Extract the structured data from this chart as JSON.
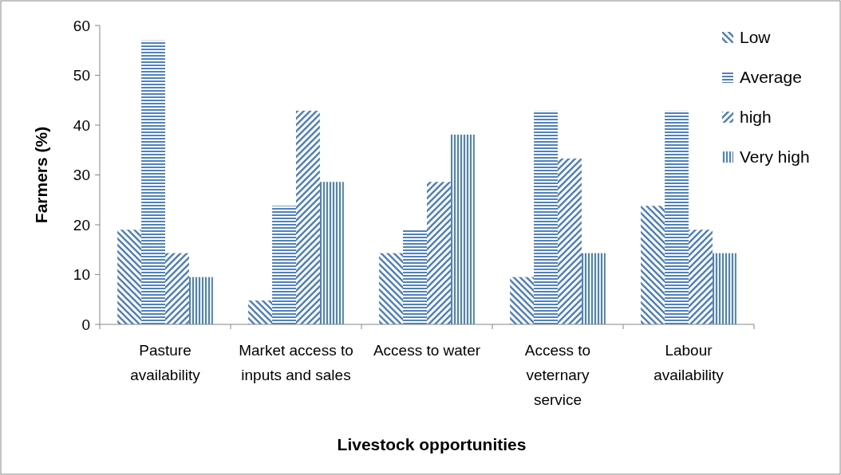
{
  "chart_data": {
    "type": "bar",
    "xlabel": "Livestock opportunities",
    "ylabel": "Farmers (%)",
    "categories": [
      "Pasture availability",
      "Market access to inputs and sales",
      "Access to water",
      "Access to veternary service",
      "Labour availability"
    ],
    "series": [
      {
        "name": "Low",
        "color": "#4f81bd",
        "values": [
          19,
          4.8,
          14.3,
          9.5,
          23.8
        ]
      },
      {
        "name": "Average",
        "color": "#4f81bd",
        "values": [
          57,
          23.8,
          19,
          42.9,
          42.9
        ]
      },
      {
        "name": "high",
        "color": "#4f81bd",
        "values": [
          14.3,
          42.9,
          28.6,
          33.3,
          19
        ]
      },
      {
        "name": "Very high",
        "color": "#4f81bd",
        "values": [
          9.5,
          28.6,
          38.1,
          14.3,
          14.3
        ]
      }
    ],
    "ylim": [
      0,
      60
    ],
    "yticks": [
      0,
      10,
      20,
      30,
      40,
      50,
      60
    ],
    "grid": false,
    "legend": "right"
  }
}
